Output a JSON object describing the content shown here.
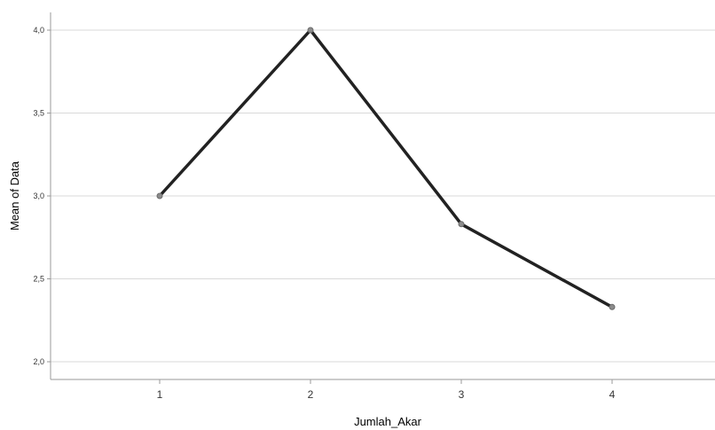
{
  "chart_data": {
    "type": "line",
    "title": "",
    "xlabel": "Jumlah_Akar",
    "ylabel": "Mean of Data",
    "categories": [
      "1",
      "2",
      "3",
      "4"
    ],
    "series": [
      {
        "values": [
          3.0,
          4.0,
          2.83,
          2.33
        ]
      }
    ],
    "ylim": [
      1.9,
      4.1
    ],
    "yticks": [
      2.0,
      2.5,
      3.0,
      3.5,
      4.0
    ],
    "ytick_labels": [
      "2,0",
      "2,5",
      "3,0",
      "3,5",
      "4,0"
    ],
    "grid": "horizontal",
    "legend": "none",
    "colors": {
      "line": "#222222",
      "marker": "#8c8c8c",
      "grid": "#d9d9d9",
      "axis": "#9a9a9a"
    }
  }
}
